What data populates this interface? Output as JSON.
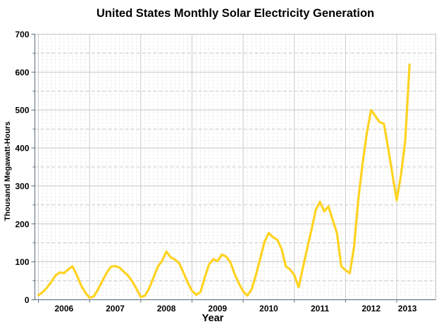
{
  "chart_data": {
    "type": "line",
    "title": "United States Monthly Solar Electricity Generation",
    "xlabel": "Year",
    "ylabel": "Thousand Megawatt-Hours",
    "series": [
      {
        "name": "monthly-solar-generation",
        "start": "2006-01",
        "frequency": "monthly",
        "unit": "thousand megawatt-hours",
        "values": [
          12,
          20,
          32,
          47,
          64,
          72,
          70,
          80,
          88,
          65,
          38,
          19,
          5,
          9,
          28,
          50,
          71,
          87,
          89,
          85,
          74,
          64,
          48,
          29,
          7,
          11,
          31,
          59,
          87,
          103,
          127,
          112,
          106,
          96,
          72,
          45,
          24,
          13,
          20,
          59,
          93,
          107,
          102,
          119,
          114,
          99,
          68,
          43,
          22,
          11,
          28,
          65,
          109,
          152,
          176,
          165,
          158,
          134,
          88,
          80,
          65,
          33,
          84,
          135,
          183,
          236,
          258,
          233,
          246,
          210,
          175,
          88,
          78,
          70,
          140,
          265,
          360,
          440,
          500,
          484,
          468,
          464,
          400,
          330,
          262,
          330,
          420,
          620
        ]
      }
    ],
    "x_axis": {
      "tick_labels": [
        "2006",
        "2007",
        "2008",
        "2009",
        "2010",
        "2011",
        "2012",
        "2013"
      ],
      "label_center_month": [
        6,
        18,
        30,
        42,
        54,
        66,
        78,
        86.5
      ],
      "year_boundary_months": [
        0,
        12,
        24,
        36,
        48,
        60,
        72,
        84
      ],
      "months_shown": 93
    },
    "y_axis": {
      "min": 0,
      "max": 700,
      "major_step": 100,
      "minor_step": 50,
      "tick_labels": [
        "0",
        "100",
        "200",
        "300",
        "400",
        "500",
        "600",
        "700"
      ]
    },
    "legend": "none",
    "grid": "major solid, minor dashed",
    "colors": {
      "line": "#FFD320",
      "major_grid": "#c8c8c8",
      "minor_grid_h": "#c9c9c9",
      "minor_grid_v": "#dedede",
      "axis": "#5a6a7a",
      "border": "#c6c6c6",
      "text": "#000000",
      "background": "#ffffff"
    }
  }
}
